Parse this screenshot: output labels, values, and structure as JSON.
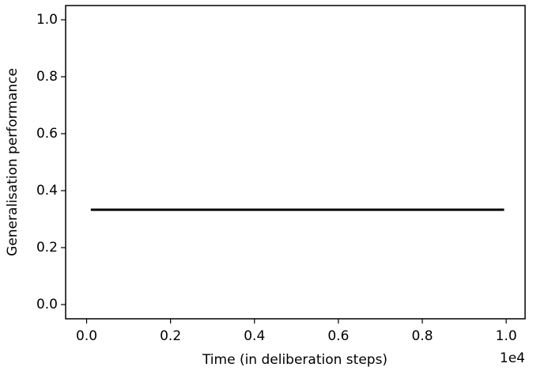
{
  "chart_data": {
    "type": "line",
    "x_label": "Time (in deliberation steps)",
    "y_label": "Generalisation performance",
    "x_offset_label": "1e4",
    "x": [
      100,
      9950
    ],
    "series": [
      {
        "color": "#000000",
        "values": [
          0.333,
          0.333
        ]
      }
    ],
    "xlim": [
      -500,
      10450
    ],
    "ylim": [
      -0.05,
      1.05
    ],
    "xticks": [
      {
        "value": 0,
        "label": "0.0"
      },
      {
        "value": 2000,
        "label": "0.2"
      },
      {
        "value": 4000,
        "label": "0.4"
      },
      {
        "value": 6000,
        "label": "0.6"
      },
      {
        "value": 8000,
        "label": "0.8"
      },
      {
        "value": 10000,
        "label": "1.0"
      }
    ],
    "yticks": [
      {
        "value": 0,
        "label": "0.0"
      },
      0.2,
      0.4,
      0.6,
      0.8,
      {
        "value": 1,
        "label": "1.0"
      }
    ]
  }
}
